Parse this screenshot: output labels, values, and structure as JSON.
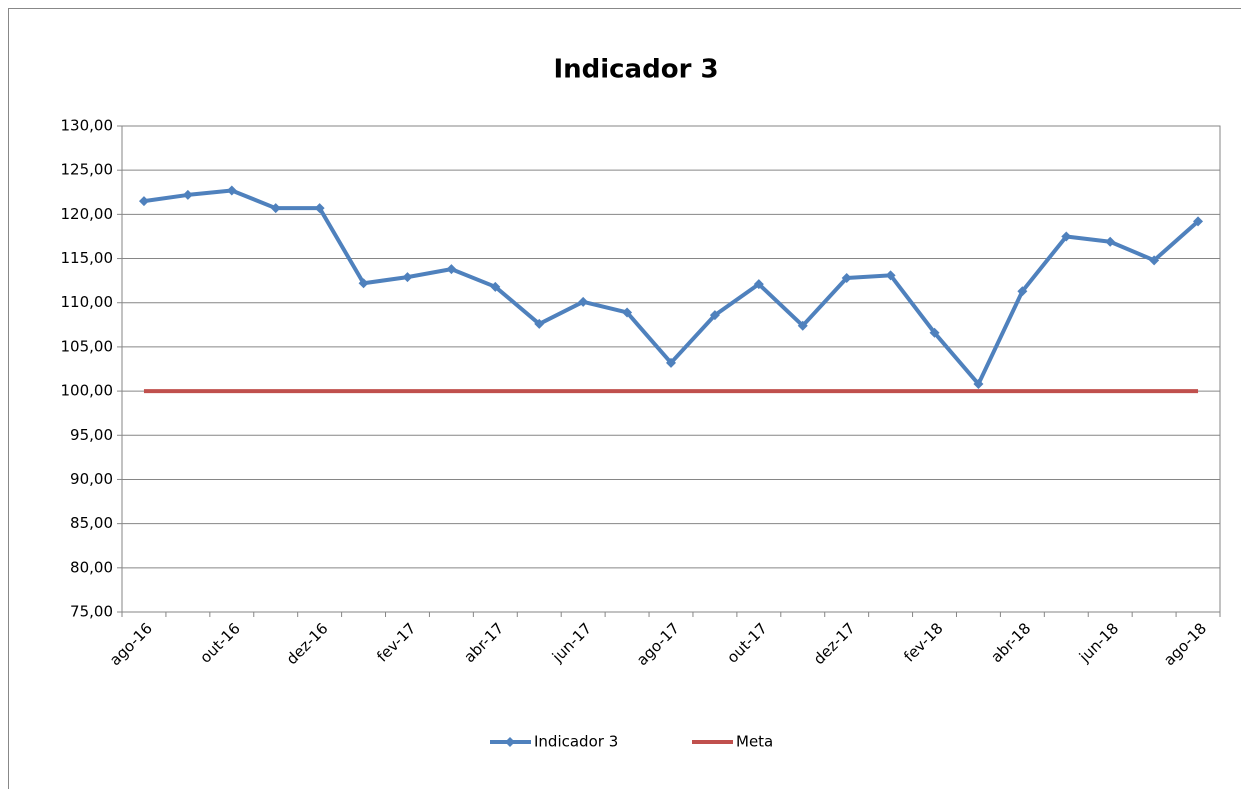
{
  "chart_data": {
    "type": "line",
    "title": "Indicador 3",
    "categories": [
      "ago-16",
      null,
      "out-16",
      null,
      "dez-16",
      null,
      "fev-17",
      null,
      "abr-17",
      null,
      "jun-17",
      null,
      "ago-17",
      null,
      "out-17",
      null,
      "dez-17",
      null,
      "fev-18",
      null,
      "abr-18",
      null,
      "jun-18",
      null,
      "ago-18"
    ],
    "series": [
      {
        "name": "Indicador 3",
        "color": "#4f81bd",
        "values": [
          121.5,
          122.2,
          122.7,
          120.7,
          120.7,
          112.2,
          112.9,
          113.8,
          111.8,
          107.6,
          110.1,
          108.9,
          103.2,
          108.6,
          112.1,
          107.4,
          112.8,
          113.1,
          106.6,
          100.8,
          111.3,
          117.5,
          116.9,
          114.8,
          119.2
        ]
      },
      {
        "name": "Meta",
        "color": "#c0504d",
        "values": [
          100,
          100,
          100,
          100,
          100,
          100,
          100,
          100,
          100,
          100,
          100,
          100,
          100,
          100,
          100,
          100,
          100,
          100,
          100,
          100,
          100,
          100,
          100,
          100,
          100
        ]
      }
    ],
    "ylim": [
      75,
      130
    ],
    "yticks": [
      {
        "value": 75,
        "label": "75,00"
      },
      {
        "value": 80,
        "label": "80,00"
      },
      {
        "value": 85,
        "label": "85,00"
      },
      {
        "value": 90,
        "label": "90,00"
      },
      {
        "value": 95,
        "label": "95,00"
      },
      {
        "value": 100,
        "label": "100,00"
      },
      {
        "value": 105,
        "label": "105,00"
      },
      {
        "value": 110,
        "label": "110,00"
      },
      {
        "value": 115,
        "label": "115,00"
      },
      {
        "value": 120,
        "label": "120,00"
      },
      {
        "value": 125,
        "label": "125,00"
      },
      {
        "value": 130,
        "label": "130,00"
      }
    ],
    "grid": true,
    "legend": "bottom"
  }
}
